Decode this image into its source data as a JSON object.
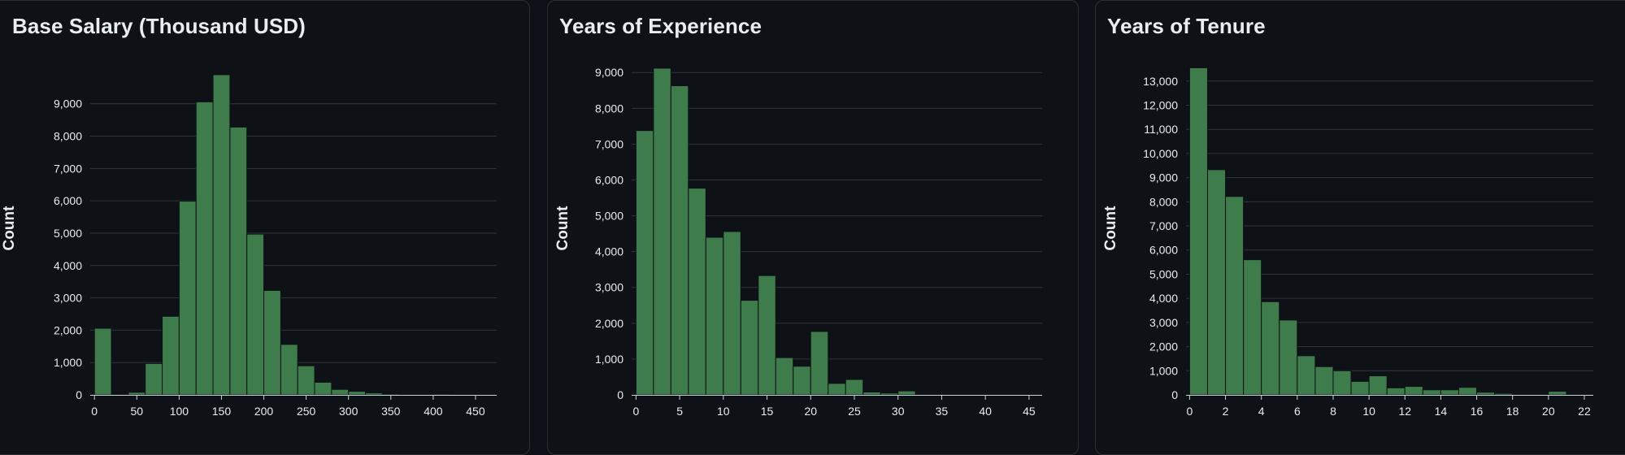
{
  "colors": {
    "bar": "#3f7c4c",
    "bar_stroke": "#0e1116",
    "grid": "#30363d",
    "text": "#e6edf3",
    "panel_bg": "#0e1116"
  },
  "panels": [
    {
      "title": "Base Salary (Thousand USD)"
    },
    {
      "title": "Years of Experience"
    },
    {
      "title": "Years of Tenure"
    }
  ],
  "chart_data": [
    {
      "type": "bar",
      "title": "Base Salary (Thousand USD)",
      "ylabel": "Count",
      "xlabel": "",
      "bin_width": 20,
      "bins_start": [
        0,
        20,
        40,
        60,
        80,
        100,
        120,
        140,
        160,
        180,
        200,
        220,
        240,
        260,
        280,
        300,
        320,
        340,
        360,
        380,
        400,
        420,
        440,
        460
      ],
      "values": [
        2060,
        0,
        80,
        970,
        2430,
        5990,
        9060,
        9900,
        8280,
        4970,
        3230,
        1560,
        900,
        390,
        170,
        110,
        60,
        30,
        20,
        20,
        30,
        20,
        20,
        10
      ],
      "xlim": [
        -5,
        475
      ],
      "ylim": [
        0,
        10300
      ],
      "xticks": [
        0,
        50,
        100,
        150,
        200,
        250,
        300,
        350,
        400,
        450
      ],
      "xtick_labels": [
        "0",
        "50",
        "100",
        "150",
        "200",
        "250",
        "300",
        "350",
        "400",
        "450"
      ],
      "yticks": [
        0,
        1000,
        2000,
        3000,
        4000,
        5000,
        6000,
        7000,
        8000,
        9000
      ],
      "ytick_labels": [
        "0",
        "1,000",
        "2,000",
        "3,000",
        "4,000",
        "5,000",
        "6,000",
        "7,000",
        "8,000",
        "9,000"
      ],
      "grid": true
    },
    {
      "type": "bar",
      "title": "Years of Experience",
      "ylabel": "Count",
      "xlabel": "",
      "bin_width": 2,
      "bins_start": [
        0,
        2,
        4,
        6,
        8,
        10,
        12,
        14,
        16,
        18,
        20,
        22,
        24,
        26,
        28,
        30,
        32,
        34,
        36,
        38,
        40,
        42,
        44
      ],
      "values": [
        7380,
        9120,
        8630,
        5770,
        4400,
        4560,
        2640,
        3330,
        1040,
        800,
        1770,
        320,
        430,
        80,
        50,
        110,
        20,
        20,
        10,
        10,
        10,
        10,
        10
      ],
      "xlim": [
        -0.5,
        46.5
      ],
      "ylim": [
        0,
        9300
      ],
      "xticks": [
        0,
        5,
        10,
        15,
        20,
        25,
        30,
        35,
        40,
        45
      ],
      "xtick_labels": [
        "0",
        "5",
        "10",
        "15",
        "20",
        "25",
        "30",
        "35",
        "40",
        "45"
      ],
      "yticks": [
        0,
        1000,
        2000,
        3000,
        4000,
        5000,
        6000,
        7000,
        8000,
        9000
      ],
      "ytick_labels": [
        "0",
        "1,000",
        "2,000",
        "3,000",
        "4,000",
        "5,000",
        "6,000",
        "7,000",
        "8,000",
        "9,000"
      ],
      "grid": true
    },
    {
      "type": "bar",
      "title": "Years of Tenure",
      "ylabel": "Count",
      "xlabel": "",
      "bin_width": 1,
      "bins_start": [
        0,
        1,
        2,
        3,
        4,
        5,
        6,
        7,
        8,
        9,
        10,
        11,
        12,
        13,
        14,
        15,
        16,
        17,
        18,
        19,
        20,
        21
      ],
      "values": [
        13550,
        9330,
        8220,
        5600,
        3860,
        3100,
        1620,
        1170,
        1000,
        560,
        790,
        290,
        350,
        210,
        210,
        310,
        110,
        60,
        30,
        30,
        150,
        30
      ],
      "xlim": [
        -0.2,
        22.5
      ],
      "ylim": [
        0,
        13800
      ],
      "xticks": [
        0,
        2,
        4,
        6,
        8,
        10,
        12,
        14,
        16,
        18,
        20,
        22
      ],
      "xtick_labels": [
        "0",
        "2",
        "4",
        "6",
        "8",
        "10",
        "12",
        "14",
        "16",
        "18",
        "20",
        "22"
      ],
      "yticks": [
        0,
        1000,
        2000,
        3000,
        4000,
        5000,
        6000,
        7000,
        8000,
        9000,
        10000,
        11000,
        12000,
        13000
      ],
      "ytick_labels": [
        "0",
        "1,000",
        "2,000",
        "3,000",
        "4,000",
        "5,000",
        "6,000",
        "7,000",
        "8,000",
        "9,000",
        "10,000",
        "11,000",
        "12,000",
        "13,000"
      ],
      "grid": true
    }
  ]
}
